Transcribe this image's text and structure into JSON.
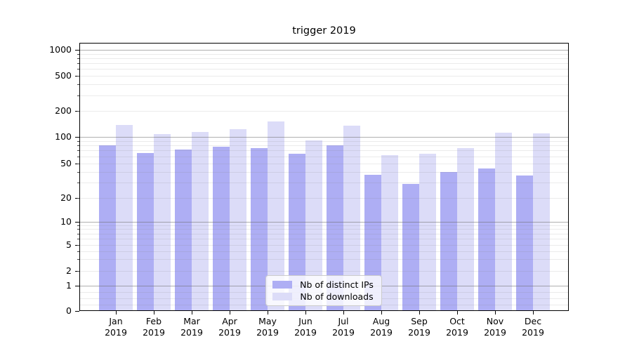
{
  "title": "trigger 2019",
  "chart_data": {
    "type": "bar",
    "title": "trigger 2019",
    "categories": [
      "Jan 2019",
      "Feb 2019",
      "Mar 2019",
      "Apr 2019",
      "May 2019",
      "Jun 2019",
      "Jul 2019",
      "Aug 2019",
      "Sep 2019",
      "Oct 2019",
      "Nov 2019",
      "Dec 2019"
    ],
    "series": [
      {
        "name": "Nb of distinct IPs",
        "color": "#aeaef4",
        "values": [
          80,
          65,
          72,
          78,
          74,
          64,
          80,
          37,
          29,
          40,
          44,
          36
        ]
      },
      {
        "name": "Nb of downloads",
        "color": "#dcdcf8",
        "values": [
          138,
          108,
          115,
          124,
          151,
          91,
          136,
          62,
          64,
          75,
          112,
          110
        ]
      }
    ],
    "yscale": "symlog",
    "y_ticks": [
      0,
      1,
      2,
      5,
      10,
      20,
      50,
      100,
      200,
      500,
      1000
    ],
    "ylim": [
      0,
      1200
    ],
    "xlabel": "",
    "ylabel": "",
    "grid": true,
    "legend_position": "lower center"
  },
  "colors": {
    "grid_major": "#b0b0b0",
    "grid_minor": "#e7e7e7",
    "spine": "#000000",
    "background": "#ffffff"
  }
}
